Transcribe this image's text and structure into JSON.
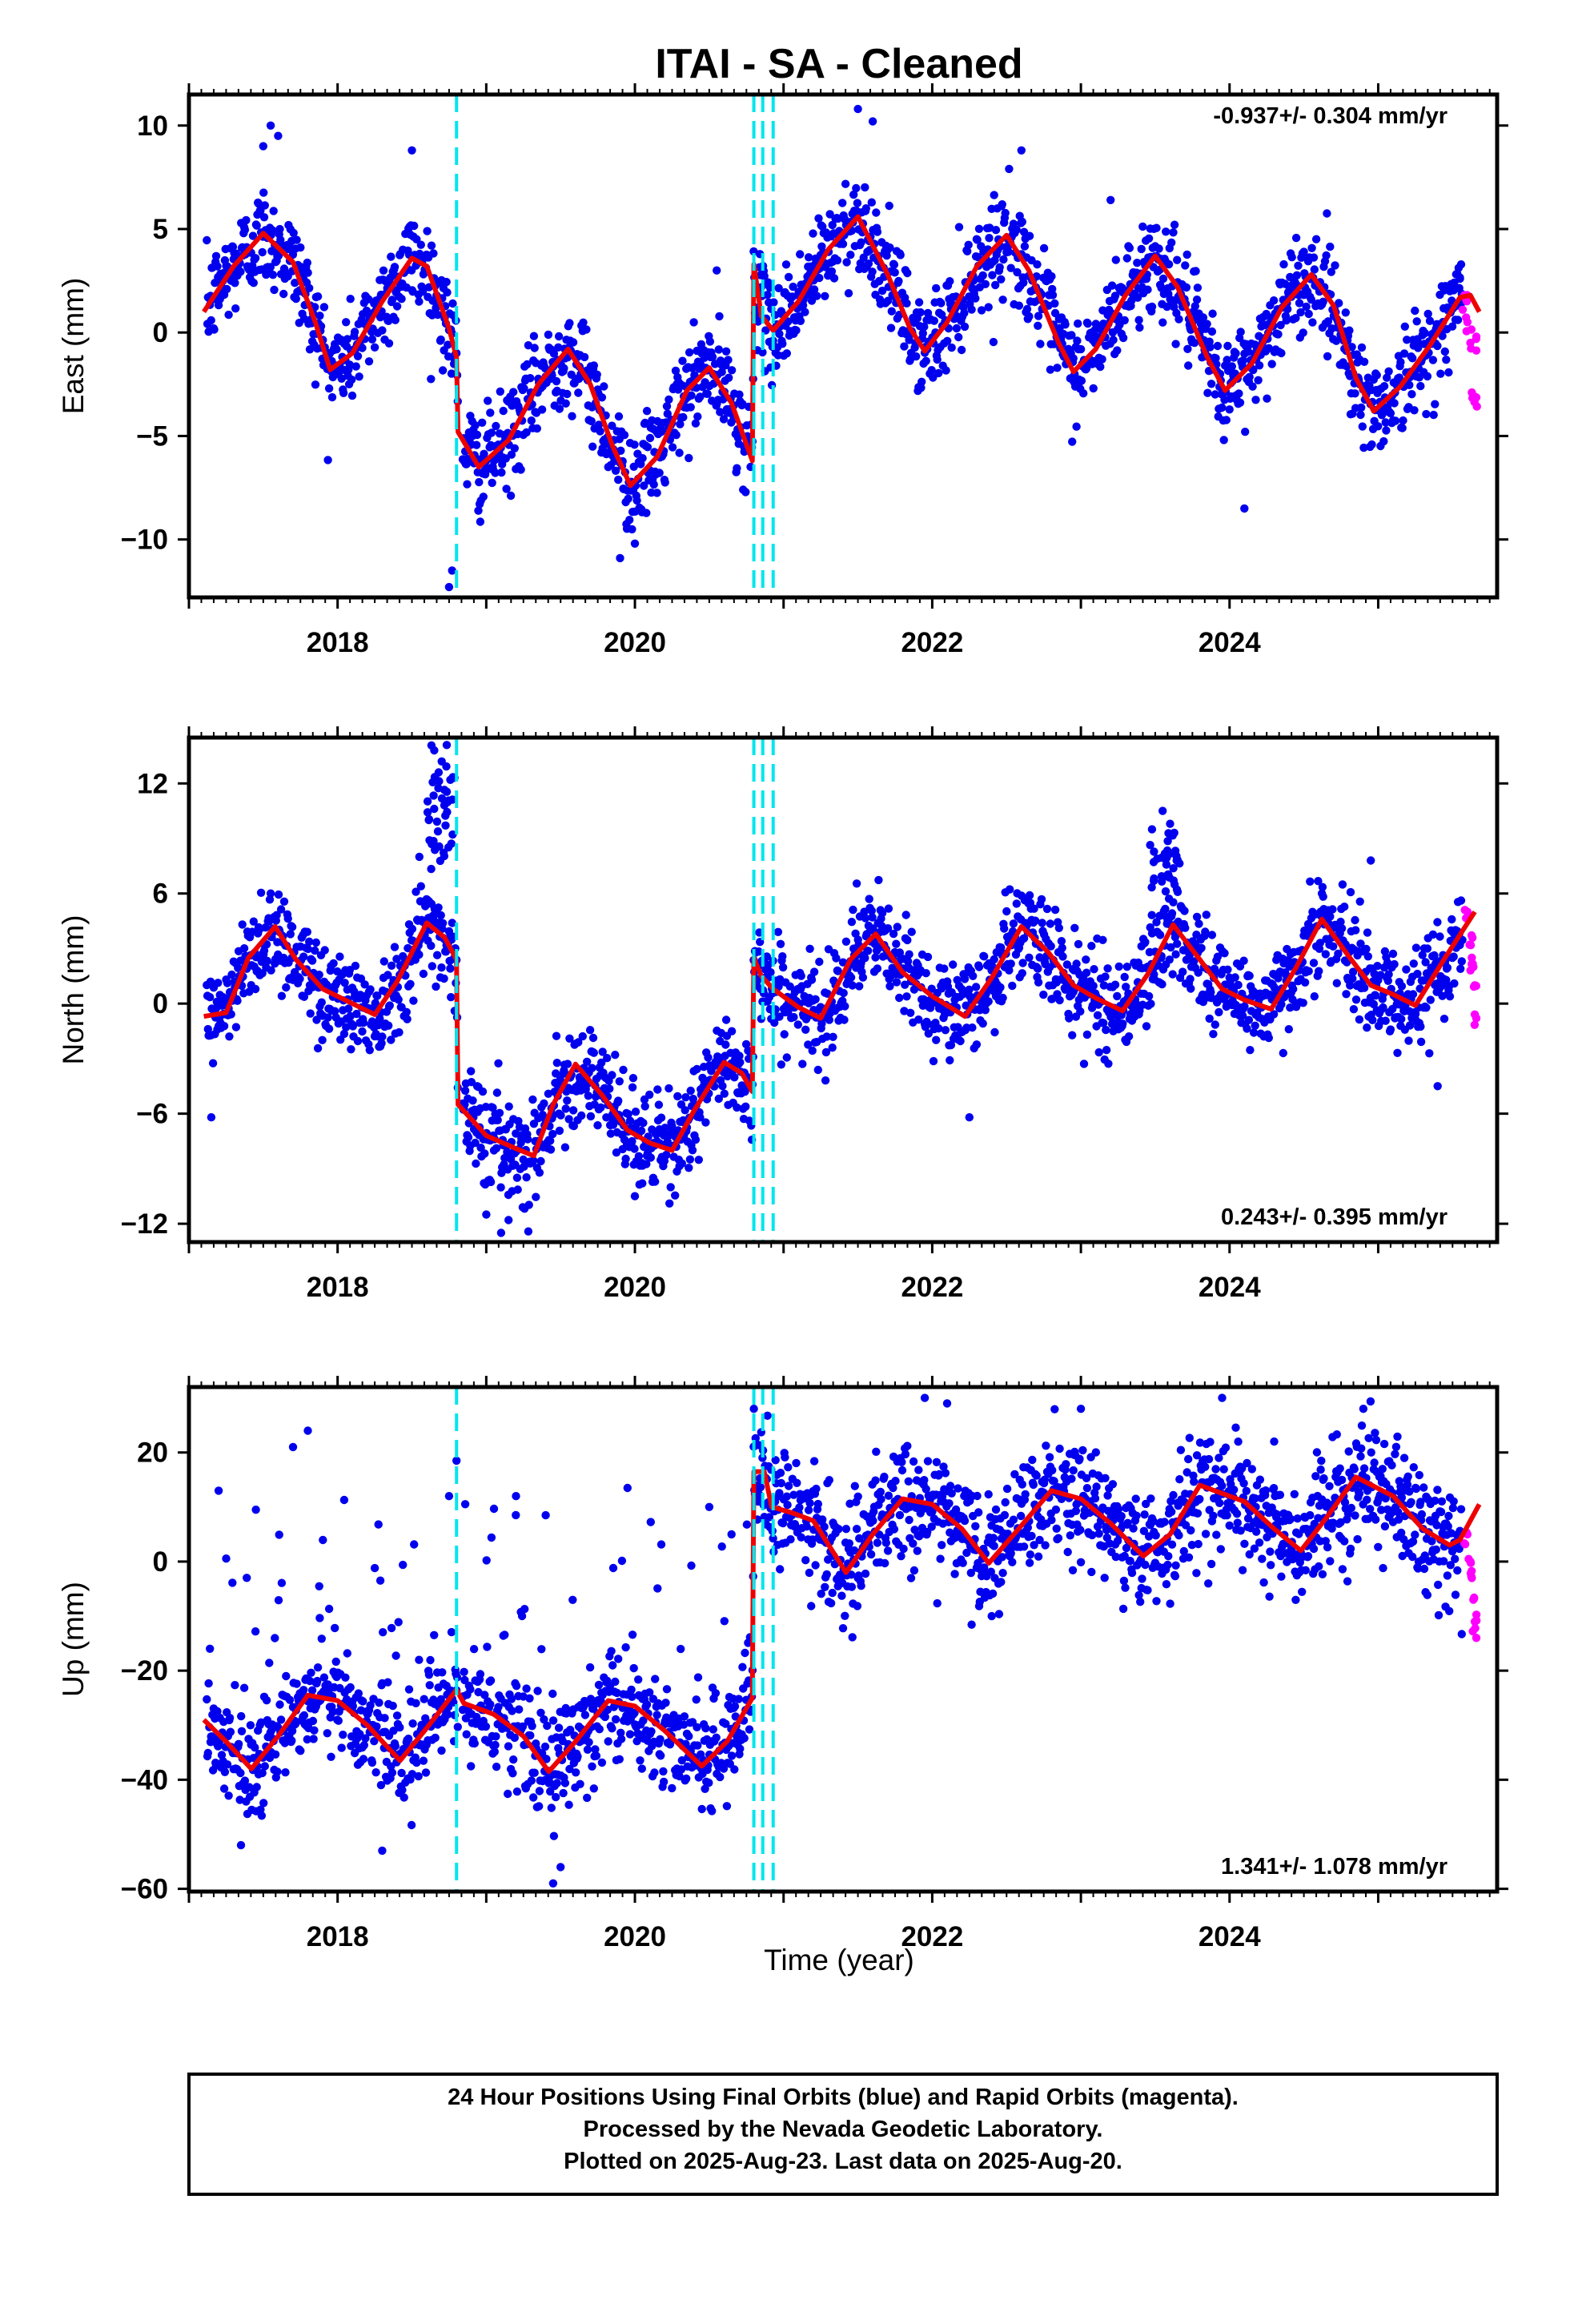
{
  "title": "ITAI  - SA - Cleaned",
  "xlabel": "Time (year)",
  "colors": {
    "final": "#0000ee",
    "rapid": "#ff00ff",
    "model": "#ee0000",
    "breaks": "#00e5ee"
  },
  "footer": {
    "line1": "24 Hour Positions Using Final Orbits (blue) and Rapid Orbits (magenta).",
    "line2": "Processed by the Nevada Geodetic Laboratory.",
    "line3": "Plotted on 2025-Aug-23. Last data on 2025-Aug-20."
  },
  "chart_data": [
    {
      "type": "scatter",
      "title": "ITAI  - SA - Cleaned",
      "ylabel": "East (mm)",
      "rate": "-0.937+/- 0.304 mm/yr",
      "rate_position": "top-right",
      "xlim": [
        2017.0,
        2025.8
      ],
      "ylim": [
        -12.8,
        11.5
      ],
      "xticks": [
        2018,
        2020,
        2022,
        2024
      ],
      "yticks": [
        -10,
        -5,
        0,
        5,
        10
      ],
      "breaks": [
        2018.8,
        2020.8,
        2020.86,
        2020.93
      ],
      "model": [
        [
          2017.1,
          1.0
        ],
        [
          2017.3,
          3.2
        ],
        [
          2017.5,
          4.8
        ],
        [
          2017.7,
          3.4
        ],
        [
          2017.85,
          0.5
        ],
        [
          2017.95,
          -1.8
        ],
        [
          2018.1,
          -1.0
        ],
        [
          2018.3,
          1.5
        ],
        [
          2018.5,
          3.6
        ],
        [
          2018.6,
          3.2
        ],
        [
          2018.75,
          0.2
        ],
        [
          2018.8,
          -1.2
        ],
        [
          2018.81,
          -4.8
        ],
        [
          2018.95,
          -6.5
        ],
        [
          2019.15,
          -5.2
        ],
        [
          2019.35,
          -2.5
        ],
        [
          2019.55,
          -0.8
        ],
        [
          2019.7,
          -2.5
        ],
        [
          2019.85,
          -5.5
        ],
        [
          2019.97,
          -7.4
        ],
        [
          2020.15,
          -6.0
        ],
        [
          2020.35,
          -2.8
        ],
        [
          2020.5,
          -1.7
        ],
        [
          2020.65,
          -3.4
        ],
        [
          2020.79,
          -6.2
        ],
        [
          2020.8,
          3.3
        ],
        [
          2020.85,
          0.8
        ],
        [
          2020.93,
          0.1
        ],
        [
          2021.1,
          1.5
        ],
        [
          2021.3,
          4.0
        ],
        [
          2021.5,
          5.6
        ],
        [
          2021.7,
          2.8
        ],
        [
          2021.85,
          0.2
        ],
        [
          2021.95,
          -0.9
        ],
        [
          2022.1,
          0.5
        ],
        [
          2022.3,
          3.2
        ],
        [
          2022.5,
          4.7
        ],
        [
          2022.65,
          3.0
        ],
        [
          2022.85,
          -0.5
        ],
        [
          2022.95,
          -1.9
        ],
        [
          2023.1,
          -0.8
        ],
        [
          2023.3,
          1.8
        ],
        [
          2023.5,
          3.7
        ],
        [
          2023.65,
          2.2
        ],
        [
          2023.85,
          -1.2
        ],
        [
          2023.97,
          -2.8
        ],
        [
          2024.15,
          -1.5
        ],
        [
          2024.35,
          1.2
        ],
        [
          2024.55,
          2.8
        ],
        [
          2024.7,
          1.3
        ],
        [
          2024.85,
          -2.2
        ],
        [
          2024.97,
          -3.8
        ],
        [
          2025.15,
          -2.6
        ],
        [
          2025.35,
          -0.6
        ],
        [
          2025.55,
          1.7
        ],
        [
          2025.62,
          1.8
        ],
        [
          2025.68,
          1.0
        ]
      ],
      "spikes": [
        [
          2017.5,
          9.0
        ],
        [
          2017.55,
          10.0
        ],
        [
          2017.6,
          9.5
        ],
        [
          2018.5,
          8.8
        ],
        [
          2018.75,
          -12.3
        ],
        [
          2018.77,
          -11.5
        ],
        [
          2019.9,
          -10.9
        ],
        [
          2020.0,
          -10.2
        ],
        [
          2020.55,
          3.0
        ],
        [
          2021.5,
          10.8
        ],
        [
          2021.6,
          10.2
        ],
        [
          2022.6,
          8.8
        ],
        [
          2023.2,
          6.4
        ],
        [
          2024.1,
          -8.5
        ],
        [
          2024.5,
          3.9
        ],
        [
          2025.55,
          2.6
        ]
      ],
      "rapid": [
        [
          2025.58,
          1.8
        ],
        [
          2025.6,
          0.5
        ],
        [
          2025.62,
          -0.5
        ],
        [
          2025.63,
          -2.9
        ],
        [
          2025.65,
          -3.1
        ],
        [
          2025.66,
          -0.2
        ]
      ]
    },
    {
      "type": "scatter",
      "ylabel": "North (mm)",
      "rate": "0.243+/- 0.395 mm/yr",
      "rate_position": "bottom-right",
      "xlim": [
        2017.0,
        2025.8
      ],
      "ylim": [
        -13,
        14.5
      ],
      "xticks": [
        2018,
        2020,
        2022,
        2024
      ],
      "yticks": [
        -12,
        -6,
        0,
        6,
        12
      ],
      "breaks": [
        2018.8,
        2020.8,
        2020.86,
        2020.93
      ],
      "model": [
        [
          2017.1,
          -0.7
        ],
        [
          2017.25,
          -0.5
        ],
        [
          2017.4,
          2.5
        ],
        [
          2017.58,
          4.2
        ],
        [
          2017.72,
          2.4
        ],
        [
          2017.9,
          0.8
        ],
        [
          2018.1,
          0.0
        ],
        [
          2018.25,
          -0.6
        ],
        [
          2018.4,
          1.2
        ],
        [
          2018.6,
          4.4
        ],
        [
          2018.72,
          3.6
        ],
        [
          2018.8,
          2.4
        ],
        [
          2018.81,
          -5.5
        ],
        [
          2019.0,
          -7.2
        ],
        [
          2019.2,
          -7.9
        ],
        [
          2019.32,
          -8.3
        ],
        [
          2019.45,
          -5.5
        ],
        [
          2019.6,
          -3.3
        ],
        [
          2019.78,
          -5.0
        ],
        [
          2019.95,
          -6.9
        ],
        [
          2020.1,
          -7.6
        ],
        [
          2020.25,
          -8.0
        ],
        [
          2020.4,
          -5.8
        ],
        [
          2020.6,
          -3.2
        ],
        [
          2020.72,
          -3.8
        ],
        [
          2020.79,
          -4.8
        ],
        [
          2020.8,
          2.5
        ],
        [
          2020.85,
          1.5
        ],
        [
          2020.93,
          0.8
        ],
        [
          2021.1,
          -0.2
        ],
        [
          2021.25,
          -0.8
        ],
        [
          2021.45,
          2.4
        ],
        [
          2021.62,
          3.8
        ],
        [
          2021.8,
          1.7
        ],
        [
          2022.0,
          0.4
        ],
        [
          2022.22,
          -0.7
        ],
        [
          2022.4,
          1.4
        ],
        [
          2022.6,
          4.2
        ],
        [
          2022.78,
          2.8
        ],
        [
          2022.95,
          1.0
        ],
        [
          2023.1,
          0.3
        ],
        [
          2023.28,
          -0.4
        ],
        [
          2023.45,
          1.6
        ],
        [
          2023.62,
          4.3
        ],
        [
          2023.8,
          2.4
        ],
        [
          2023.95,
          0.8
        ],
        [
          2024.1,
          0.2
        ],
        [
          2024.28,
          -0.3
        ],
        [
          2024.45,
          2.0
        ],
        [
          2024.62,
          4.6
        ],
        [
          2024.8,
          2.6
        ],
        [
          2024.95,
          1.0
        ],
        [
          2025.1,
          0.5
        ],
        [
          2025.25,
          -0.1
        ],
        [
          2025.45,
          2.5
        ],
        [
          2025.65,
          5.0
        ]
      ],
      "clusters": [
        {
          "x0": 2018.6,
          "x1": 2018.8,
          "center": 10.5,
          "spread": 1.5,
          "n": 40
        },
        {
          "x0": 2023.45,
          "x1": 2023.65,
          "center": 7.2,
          "spread": 1.5,
          "n": 35
        }
      ],
      "spikes": [
        [
          2018.65,
          13.8
        ],
        [
          2018.7,
          13.2
        ],
        [
          2018.68,
          12.6
        ],
        [
          2018.55,
          8.0
        ],
        [
          2019.1,
          -12.5
        ],
        [
          2019.15,
          -11.8
        ],
        [
          2019.0,
          -11.5
        ],
        [
          2020.0,
          -10.5
        ],
        [
          2020.05,
          -9.8
        ],
        [
          2022.25,
          -6.2
        ],
        [
          2023.55,
          10.5
        ],
        [
          2023.6,
          9.8
        ],
        [
          2024.95,
          7.8
        ],
        [
          2025.4,
          -4.5
        ],
        [
          2017.15,
          -6.2
        ],
        [
          2017.55,
          6.0
        ]
      ],
      "rapid": [
        [
          2025.6,
          5.0
        ],
        [
          2025.62,
          3.2
        ],
        [
          2025.63,
          2.5
        ],
        [
          2025.65,
          1.0
        ],
        [
          2025.66,
          -0.8
        ],
        [
          2025.64,
          2.0
        ]
      ]
    },
    {
      "type": "scatter",
      "ylabel": "Up (mm)",
      "rate": "1.341+/- 1.078 mm/yr",
      "rate_position": "bottom-right",
      "xlim": [
        2017.0,
        2025.8
      ],
      "ylim": [
        -60.5,
        32
      ],
      "xticks": [
        2018,
        2020,
        2022,
        2024
      ],
      "yticks": [
        -60,
        -40,
        -20,
        0,
        20
      ],
      "breaks": [
        2018.8,
        2020.8,
        2020.86,
        2020.93
      ],
      "model": [
        [
          2017.1,
          -29.0
        ],
        [
          2017.25,
          -33.0
        ],
        [
          2017.42,
          -38.0
        ],
        [
          2017.6,
          -32.0
        ],
        [
          2017.8,
          -24.5
        ],
        [
          2018.0,
          -25.5
        ],
        [
          2018.2,
          -30.0
        ],
        [
          2018.42,
          -36.5
        ],
        [
          2018.6,
          -30.5
        ],
        [
          2018.8,
          -23.5
        ],
        [
          2018.85,
          -26.0
        ],
        [
          2019.05,
          -28.0
        ],
        [
          2019.25,
          -32.0
        ],
        [
          2019.42,
          -38.5
        ],
        [
          2019.6,
          -33.0
        ],
        [
          2019.82,
          -25.5
        ],
        [
          2020.0,
          -26.5
        ],
        [
          2020.2,
          -31.0
        ],
        [
          2020.45,
          -37.5
        ],
        [
          2020.62,
          -33.0
        ],
        [
          2020.79,
          -25.0
        ],
        [
          2020.8,
          16.5
        ],
        [
          2020.87,
          16.5
        ],
        [
          2020.92,
          10.0
        ],
        [
          2021.05,
          9.0
        ],
        [
          2021.2,
          7.5
        ],
        [
          2021.42,
          -2.0
        ],
        [
          2021.6,
          5.0
        ],
        [
          2021.8,
          11.5
        ],
        [
          2022.0,
          10.5
        ],
        [
          2022.2,
          6.0
        ],
        [
          2022.38,
          -0.3
        ],
        [
          2022.55,
          5.0
        ],
        [
          2022.8,
          13.0
        ],
        [
          2023.0,
          11.5
        ],
        [
          2023.2,
          7.0
        ],
        [
          2023.42,
          1.0
        ],
        [
          2023.6,
          5.0
        ],
        [
          2023.8,
          14.0
        ],
        [
          2024.1,
          11.0
        ],
        [
          2024.3,
          6.0
        ],
        [
          2024.48,
          2.0
        ],
        [
          2024.65,
          8.0
        ],
        [
          2024.85,
          15.5
        ],
        [
          2025.1,
          12.0
        ],
        [
          2025.3,
          6.0
        ],
        [
          2025.48,
          3.0
        ],
        [
          2025.55,
          4.0
        ],
        [
          2025.68,
          10.5
        ]
      ],
      "scatter_lower": 8,
      "spikes": [
        [
          2017.8,
          24.0
        ],
        [
          2017.7,
          21.0
        ],
        [
          2017.2,
          13.0
        ],
        [
          2017.45,
          9.5
        ],
        [
          2018.8,
          18.5
        ],
        [
          2018.75,
          12.0
        ],
        [
          2019.2,
          12.0
        ],
        [
          2019.4,
          8.5
        ],
        [
          2019.95,
          13.5
        ],
        [
          2020.5,
          10.0
        ],
        [
          2020.65,
          5.0
        ],
        [
          2019.45,
          -59.0
        ],
        [
          2019.5,
          -56.0
        ],
        [
          2017.35,
          -52.0
        ],
        [
          2018.3,
          -53.0
        ],
        [
          2020.8,
          28.0
        ],
        [
          2021.95,
          30.0
        ],
        [
          2022.1,
          29.0
        ],
        [
          2023.0,
          28.0
        ],
        [
          2023.95,
          30.0
        ],
        [
          2024.9,
          28.0
        ],
        [
          2024.3,
          22.0
        ],
        [
          2021.5,
          -3.0
        ],
        [
          2022.4,
          -10.0
        ]
      ],
      "rapid": [
        [
          2025.6,
          5.0
        ],
        [
          2025.62,
          0.0
        ],
        [
          2025.63,
          -3.0
        ],
        [
          2025.64,
          -7.0
        ],
        [
          2025.65,
          -11.0
        ],
        [
          2025.66,
          -14.0
        ]
      ]
    }
  ]
}
